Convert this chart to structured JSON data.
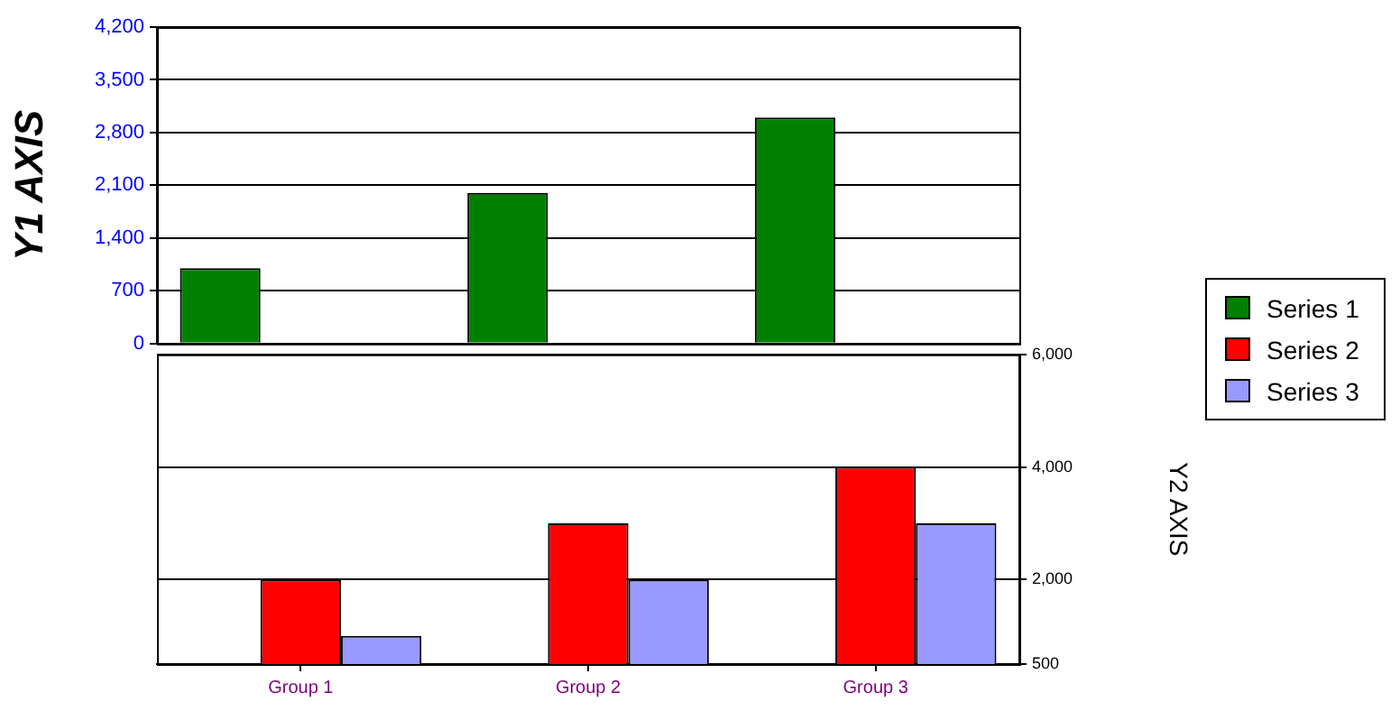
{
  "chart_data": [
    {
      "type": "bar",
      "categories": [
        null,
        null,
        null
      ],
      "series": [
        {
          "name": "Series 1",
          "color": "#008000",
          "values": [
            1000,
            2000,
            3000
          ]
        }
      ],
      "ylabel": "Y1 AXIS",
      "ylim": [
        0,
        4200
      ],
      "yticks": [
        0,
        700,
        {
          "value": 1400,
          "label": "1,400"
        },
        {
          "value": 2100,
          "label": "2,100"
        },
        {
          "value": 2800,
          "label": "2,800"
        },
        {
          "value": 3500,
          "label": "3,500"
        },
        {
          "value": 4200,
          "label": "4,200"
        }
      ],
      "tick_labels": "y",
      "grid": "y",
      "legend": "right"
    },
    {
      "type": "bar",
      "categories": [
        "Group 1",
        "Group 2",
        "Group 3"
      ],
      "series": [
        {
          "name": "Series 2",
          "color": "#ff0000",
          "values": [
            2000,
            3000,
            4000
          ],
          "axis": "y2"
        },
        {
          "name": "Series 3",
          "color": "#9999ff",
          "values": [
            1000,
            2000,
            3000
          ],
          "axis": "y2"
        }
      ],
      "y2label": "Y2 AXIS",
      "y2lim": [
        500,
        6000
      ],
      "y2ticks": [
        500,
        {
          "value": 2000,
          "label": "2,000"
        },
        {
          "value": 4000,
          "label": "4,000"
        },
        {
          "value": 6000,
          "label": "6,000"
        }
      ],
      "grid": "y",
      "legend": "right"
    }
  ]
}
